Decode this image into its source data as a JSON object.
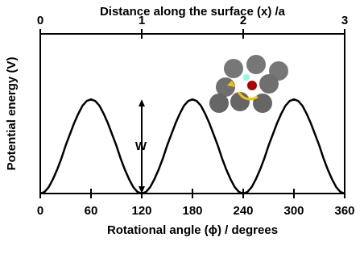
{
  "chart_data": {
    "type": "line",
    "title": "Distance along the surface (x) /a",
    "xlabel": "Rotational angle (ϕ) / degrees",
    "ylabel": "Potential energy (V)",
    "annotation": "W",
    "x": [
      0,
      5,
      10,
      15,
      20,
      25,
      30,
      35,
      40,
      45,
      50,
      55,
      60,
      65,
      70,
      75,
      80,
      85,
      90,
      95,
      100,
      105,
      110,
      115,
      120,
      125,
      130,
      135,
      140,
      145,
      150,
      155,
      160,
      165,
      170,
      175,
      180,
      185,
      190,
      195,
      200,
      205,
      210,
      215,
      220,
      225,
      230,
      235,
      240,
      245,
      250,
      255,
      260,
      265,
      270,
      275,
      280,
      285,
      290,
      295,
      300,
      305,
      310,
      315,
      320,
      325,
      330,
      335,
      340,
      345,
      350,
      355,
      360
    ],
    "values": [
      0,
      0.01,
      0.04,
      0.09,
      0.15,
      0.22,
      0.3,
      0.37,
      0.44,
      0.5,
      0.55,
      0.58,
      0.59,
      0.58,
      0.55,
      0.5,
      0.44,
      0.37,
      0.3,
      0.22,
      0.15,
      0.09,
      0.04,
      0.01,
      0,
      0.01,
      0.04,
      0.09,
      0.15,
      0.22,
      0.3,
      0.37,
      0.44,
      0.5,
      0.55,
      0.58,
      0.59,
      0.58,
      0.55,
      0.5,
      0.44,
      0.37,
      0.3,
      0.22,
      0.15,
      0.09,
      0.04,
      0.01,
      0,
      0.01,
      0.04,
      0.09,
      0.15,
      0.22,
      0.3,
      0.37,
      0.44,
      0.5,
      0.55,
      0.58,
      0.59,
      0.58,
      0.55,
      0.5,
      0.44,
      0.37,
      0.3,
      0.22,
      0.15,
      0.09,
      0.04,
      0.01,
      0
    ],
    "color": "#000000",
    "xlim": [
      0,
      360
    ],
    "xticks": [
      0,
      60,
      120,
      180,
      240,
      300,
      360
    ],
    "x2lim": [
      0,
      3
    ],
    "x2ticks": [
      0,
      1,
      2,
      3
    ],
    "ylim": [
      0,
      1
    ]
  }
}
